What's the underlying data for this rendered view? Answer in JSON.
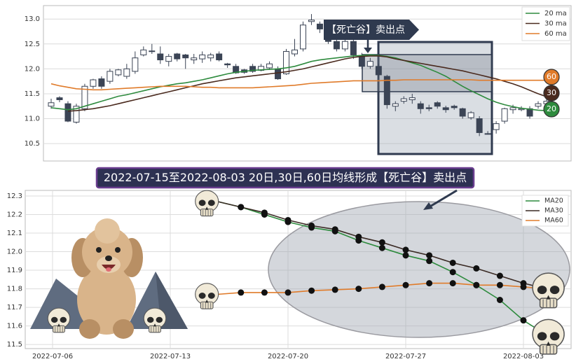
{
  "banner": "2022-07-15至2022-08-03 20日,30日,60日均线形成【死亡谷】卖出点",
  "chart_data": [
    {
      "type": "candlestick",
      "annotation": "【死亡谷】卖出点",
      "open": [
        11.25,
        11.42,
        11.3,
        10.93,
        11.2,
        11.65,
        11.8,
        11.75,
        11.88,
        11.85,
        11.95,
        12.28,
        12.35,
        12.3,
        12.15,
        12.3,
        12.28,
        12.18,
        12.2,
        12.22,
        12.3,
        12.1,
        12.05,
        11.98,
        12.05,
        11.97,
        12.02,
        12.0,
        11.9,
        12.3,
        12.4,
        12.95,
        12.9,
        12.82,
        12.55,
        12.4,
        12.55,
        12.25,
        12.05,
        12.05,
        11.85,
        11.25,
        11.35,
        11.38,
        11.3,
        11.22,
        11.32,
        11.22,
        11.25,
        11.2,
        11.02,
        11.0,
        10.7,
        10.78,
        10.95,
        11.18,
        11.18,
        11.2,
        11.25,
        11.3
      ],
      "high": [
        11.4,
        11.45,
        11.35,
        11.3,
        11.7,
        11.8,
        11.85,
        12.0,
        12.0,
        12.1,
        12.35,
        12.45,
        12.5,
        12.45,
        12.3,
        12.32,
        12.3,
        12.3,
        12.35,
        12.32,
        12.35,
        12.12,
        12.1,
        12.0,
        12.1,
        12.1,
        12.15,
        12.05,
        12.4,
        12.6,
        12.95,
        13.1,
        12.95,
        12.88,
        12.6,
        12.7,
        12.6,
        12.32,
        12.22,
        12.1,
        11.88,
        11.35,
        11.45,
        11.5,
        11.35,
        11.28,
        11.35,
        11.26,
        11.28,
        11.22,
        11.15,
        11.05,
        10.75,
        10.95,
        11.22,
        11.28,
        11.25,
        11.25,
        11.35,
        11.4
      ],
      "low": [
        11.2,
        11.33,
        10.93,
        10.9,
        11.15,
        11.6,
        11.6,
        11.7,
        11.85,
        11.8,
        11.9,
        12.25,
        12.3,
        12.1,
        12.05,
        12.15,
        12.0,
        12.1,
        12.12,
        12.15,
        12.15,
        12.02,
        11.9,
        11.9,
        11.92,
        11.95,
        11.98,
        11.78,
        11.88,
        12.25,
        12.35,
        12.88,
        12.72,
        12.5,
        12.35,
        12.35,
        12.2,
        12.0,
        12.0,
        11.8,
        11.2,
        11.15,
        11.3,
        11.3,
        11.1,
        11.15,
        11.2,
        11.12,
        11.18,
        11.0,
        10.98,
        10.65,
        10.68,
        10.7,
        10.9,
        11.1,
        11.15,
        11.0,
        11.2,
        11.25
      ],
      "close": [
        11.32,
        11.38,
        10.95,
        11.25,
        11.65,
        11.78,
        11.65,
        11.95,
        11.98,
        12.0,
        12.22,
        12.38,
        12.36,
        12.18,
        12.25,
        12.2,
        12.22,
        12.22,
        12.28,
        12.28,
        12.18,
        12.08,
        11.92,
        11.93,
        11.95,
        12.05,
        12.1,
        11.8,
        12.35,
        12.38,
        12.88,
        12.98,
        12.8,
        12.55,
        12.4,
        12.55,
        12.28,
        12.05,
        12.15,
        11.88,
        11.28,
        11.3,
        11.4,
        11.42,
        11.2,
        11.2,
        11.25,
        11.18,
        11.22,
        11.05,
        11.12,
        10.72,
        10.7,
        10.9,
        11.2,
        11.22,
        11.2,
        11.05,
        11.3,
        11.35
      ],
      "up_color": "#ffffff",
      "down_color": "#3b4455",
      "series": [
        {
          "name": "20 ma",
          "color": "#2e8b3e",
          "end_label": "20",
          "values": [
            11.22,
            11.2,
            11.18,
            11.2,
            11.25,
            11.3,
            11.35,
            11.4,
            11.45,
            11.48,
            11.52,
            11.56,
            11.6,
            11.64,
            11.67,
            11.7,
            11.72,
            11.75,
            11.78,
            11.82,
            11.86,
            11.9,
            11.93,
            11.95,
            11.97,
            11.98,
            11.99,
            12.0,
            12.02,
            12.05,
            12.1,
            12.15,
            12.18,
            12.2,
            12.22,
            12.24,
            12.26,
            12.27,
            12.28,
            12.27,
            12.25,
            12.22,
            12.17,
            12.12,
            12.07,
            12.0,
            11.93,
            11.85,
            11.75,
            11.65,
            11.56,
            11.48,
            11.4,
            11.33,
            11.28,
            11.24,
            11.21,
            11.19,
            11.17,
            11.16
          ]
        },
        {
          "name": "30 ma",
          "color": "#4a2a1e",
          "end_label": "30",
          "values": [
            null,
            null,
            11.15,
            11.16,
            11.18,
            11.2,
            11.23,
            11.26,
            11.3,
            11.34,
            11.38,
            11.42,
            11.46,
            11.5,
            11.54,
            11.58,
            11.62,
            11.66,
            11.7,
            11.73,
            11.76,
            11.79,
            11.82,
            11.84,
            11.86,
            11.88,
            11.9,
            11.92,
            11.94,
            11.97,
            12.0,
            12.04,
            12.08,
            12.12,
            12.16,
            12.2,
            12.23,
            12.25,
            12.26,
            12.26,
            12.24,
            12.2,
            12.17,
            12.14,
            12.11,
            12.08,
            12.05,
            12.02,
            11.99,
            11.96,
            11.92,
            11.88,
            11.84,
            11.8,
            11.75,
            11.7,
            11.64,
            11.57,
            11.5,
            11.44
          ]
        },
        {
          "name": "60 ma",
          "color": "#e07b2a",
          "end_label": "60",
          "values": [
            11.7,
            11.66,
            11.63,
            11.6,
            11.59,
            11.58,
            11.58,
            11.59,
            11.6,
            11.61,
            11.62,
            11.63,
            11.64,
            11.65,
            11.65,
            11.65,
            11.65,
            11.64,
            11.63,
            11.63,
            11.62,
            11.62,
            11.62,
            11.62,
            11.62,
            11.63,
            11.64,
            11.65,
            11.66,
            11.67,
            11.69,
            11.71,
            11.72,
            11.73,
            11.74,
            11.75,
            11.76,
            11.76,
            11.76,
            11.76,
            11.77,
            11.77,
            11.78,
            11.78,
            11.78,
            11.78,
            11.78,
            11.78,
            11.78,
            11.78,
            11.78,
            11.77,
            11.77,
            11.77,
            11.77,
            11.77,
            11.77,
            11.77,
            11.77,
            11.77
          ]
        }
      ],
      "ylim": [
        10.15,
        13.27
      ],
      "yticks": [
        10.5,
        {
          "value": 11,
          "label": "11.0"
        },
        11.5,
        {
          "value": 12,
          "label": "12.0"
        },
        12.5,
        {
          "value": 13,
          "label": "13.0"
        }
      ],
      "grid": true,
      "legend": "upper right"
    },
    {
      "type": "line",
      "categories": [
        null,
        "2022-07-06",
        null,
        null,
        null,
        null,
        "2022-07-13",
        null,
        null,
        null,
        null,
        "2022-07-20",
        null,
        null,
        null,
        null,
        "2022-07-27",
        null,
        null,
        null,
        null,
        "2022-08-03",
        null
      ],
      "series": [
        {
          "name": "MA20",
          "color": "#2e8b3e",
          "values": [
            null,
            null,
            null,
            null,
            null,
            null,
            null,
            null,
            12.27,
            12.24,
            12.2,
            12.16,
            12.13,
            12.11,
            12.06,
            12.02,
            11.98,
            11.95,
            11.89,
            11.82,
            11.74,
            11.63,
            11.55
          ]
        },
        {
          "name": "MA30",
          "color": "#3a2a24",
          "values": [
            null,
            null,
            null,
            null,
            null,
            null,
            null,
            null,
            12.27,
            12.24,
            12.21,
            12.17,
            12.14,
            12.12,
            12.08,
            12.05,
            12.01,
            11.98,
            11.94,
            11.91,
            11.87,
            11.83,
            11.8
          ]
        },
        {
          "name": "MA60",
          "color": "#e07b2a",
          "values": [
            null,
            null,
            null,
            null,
            null,
            null,
            null,
            null,
            11.77,
            11.78,
            11.78,
            11.78,
            11.79,
            11.795,
            11.8,
            11.81,
            11.82,
            11.83,
            11.83,
            11.82,
            11.82,
            11.81,
            11.8
          ]
        }
      ],
      "ylim": [
        11.478,
        12.33
      ],
      "yticks": [
        11.5,
        11.6,
        11.7,
        11.8,
        11.9,
        {
          "value": 12,
          "label": "12.0"
        },
        12.1,
        12.2,
        12.3
      ],
      "grid": true,
      "legend": "upper right"
    }
  ]
}
